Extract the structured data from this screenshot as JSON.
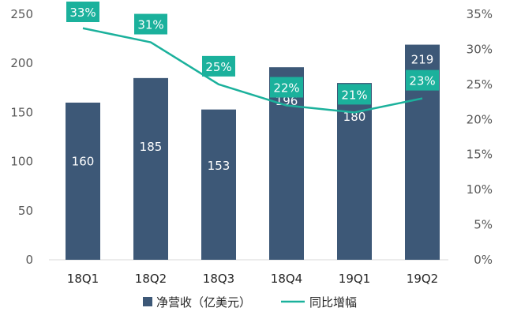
{
  "chart_data": {
    "type": "bar",
    "categories": [
      "18Q1",
      "18Q2",
      "18Q3",
      "18Q4",
      "19Q1",
      "19Q2"
    ],
    "series": [
      {
        "name": "净营收（亿美元）",
        "type": "bar",
        "axis": "left",
        "values": [
          160,
          185,
          153,
          196,
          180,
          219
        ],
        "data_labels": [
          "160",
          "185",
          "153",
          "196",
          "180",
          "219"
        ],
        "color": "#3d5877"
      },
      {
        "name": "同比增幅",
        "type": "line",
        "axis": "right",
        "values": [
          33,
          31,
          25,
          22,
          21,
          23
        ],
        "data_labels": [
          "33%",
          "31%",
          "25%",
          "22%",
          "21%",
          "23%"
        ],
        "color": "#1bb19c"
      }
    ],
    "y_left": {
      "ylim": [
        0,
        250
      ],
      "ticks": [
        "0",
        "50",
        "100",
        "150",
        "200",
        "250"
      ]
    },
    "y_right": {
      "ylim": [
        0,
        35
      ],
      "ticks": [
        "0%",
        "5%",
        "10%",
        "15%",
        "20%",
        "25%",
        "30%",
        "35%"
      ]
    },
    "grid": false,
    "legend": "bottom",
    "colors": {
      "bar": "#3d5877",
      "line": "#1bb19c",
      "label_box": "#1bb19c",
      "axis_text": "#595959"
    }
  }
}
